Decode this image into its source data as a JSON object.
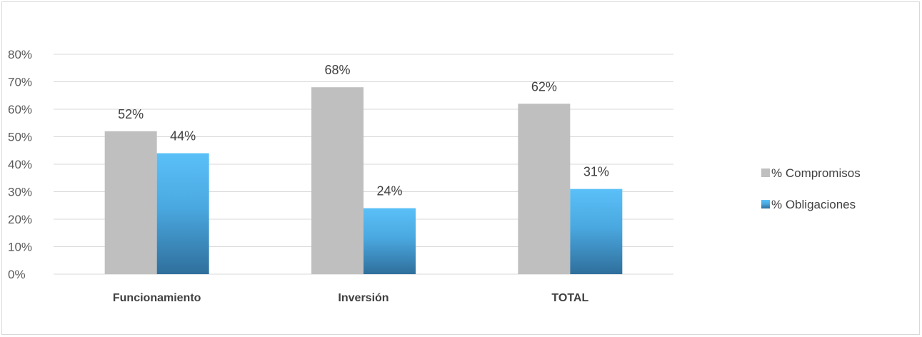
{
  "chart_data": {
    "type": "bar",
    "title": "",
    "xlabel": "",
    "ylabel": "",
    "categories": [
      "Funcionamiento",
      "Inversión",
      "TOTAL"
    ],
    "series": [
      {
        "name": "% Compromisos",
        "values": [
          52,
          68,
          62
        ],
        "labels": [
          "52%",
          "68%",
          "62%"
        ],
        "color": "#bfbfbf"
      },
      {
        "name": "% Obligaciones",
        "values": [
          44,
          24,
          31
        ],
        "labels": [
          "44%",
          "24%",
          "31%"
        ],
        "color": "#5bc0f8",
        "color_dark": "#2f6f9c"
      }
    ],
    "ylim": [
      0,
      80
    ],
    "yticks": [
      0,
      10,
      20,
      30,
      40,
      50,
      60,
      70,
      80
    ],
    "ytick_labels": [
      "0%",
      "10%",
      "20%",
      "30%",
      "40%",
      "50%",
      "60%",
      "70%",
      "80%"
    ],
    "grid": true,
    "legend": "right"
  }
}
